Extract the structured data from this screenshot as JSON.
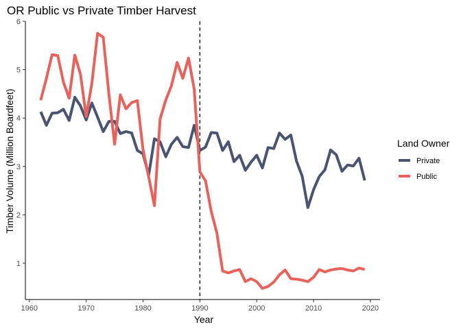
{
  "chart_data": {
    "type": "line",
    "title": "OR Public vs Private Timber Harvest",
    "xlabel": "Year",
    "ylabel": "Timber Volume (Million Boardfeet)",
    "xlim": [
      1959.3,
      2021.7
    ],
    "ylim": [
      0.25,
      6.0
    ],
    "xticks": [
      1960,
      1970,
      1980,
      1990,
      2000,
      2010,
      2020
    ],
    "yticks": [
      1,
      2,
      3,
      4,
      5,
      6
    ],
    "grid": false,
    "vline": {
      "x": 1990,
      "style": "dashed"
    },
    "legend": {
      "title": "Land Owner",
      "placement": "right"
    },
    "x": [
      1962,
      1963,
      1964,
      1965,
      1966,
      1967,
      1968,
      1969,
      1970,
      1971,
      1972,
      1973,
      1974,
      1975,
      1976,
      1977,
      1978,
      1979,
      1980,
      1981,
      1982,
      1983,
      1984,
      1985,
      1986,
      1987,
      1988,
      1989,
      1990,
      1991,
      1992,
      1993,
      1994,
      1995,
      1996,
      1997,
      1998,
      1999,
      2000,
      2001,
      2002,
      2003,
      2004,
      2005,
      2006,
      2007,
      2008,
      2009,
      2010,
      2011,
      2012,
      2013,
      2014,
      2015,
      2016,
      2017,
      2018,
      2019
    ],
    "series": [
      {
        "name": "Private",
        "color": "#4a5470",
        "values": [
          4.13,
          3.85,
          4.1,
          4.11,
          4.18,
          3.95,
          4.43,
          4.25,
          3.96,
          4.31,
          4.02,
          3.72,
          3.93,
          3.93,
          3.68,
          3.72,
          3.69,
          3.33,
          3.26,
          2.82,
          3.57,
          3.51,
          3.2,
          3.46,
          3.6,
          3.41,
          3.39,
          3.85,
          3.33,
          3.4,
          3.7,
          3.69,
          3.33,
          3.51,
          3.1,
          3.23,
          2.92,
          3.09,
          3.23,
          2.97,
          3.39,
          3.37,
          3.69,
          3.56,
          3.65,
          3.11,
          2.8,
          2.15,
          2.52,
          2.79,
          2.93,
          3.34,
          3.24,
          2.9,
          3.03,
          3.01,
          3.17,
          2.71
        ]
      },
      {
        "name": "Public",
        "color": "#e8615a",
        "values": [
          4.37,
          4.82,
          5.31,
          5.29,
          4.74,
          4.41,
          5.3,
          4.9,
          4.03,
          4.72,
          5.75,
          5.67,
          4.49,
          3.46,
          4.48,
          4.19,
          4.32,
          4.36,
          3.35,
          2.78,
          2.19,
          3.98,
          4.37,
          4.67,
          5.15,
          4.82,
          5.24,
          4.6,
          2.89,
          2.7,
          2.07,
          1.62,
          0.84,
          0.8,
          0.84,
          0.87,
          0.62,
          0.68,
          0.62,
          0.48,
          0.52,
          0.61,
          0.76,
          0.86,
          0.68,
          0.67,
          0.65,
          0.62,
          0.71,
          0.87,
          0.82,
          0.86,
          0.88,
          0.89,
          0.86,
          0.84,
          0.9,
          0.87
        ]
      }
    ]
  }
}
